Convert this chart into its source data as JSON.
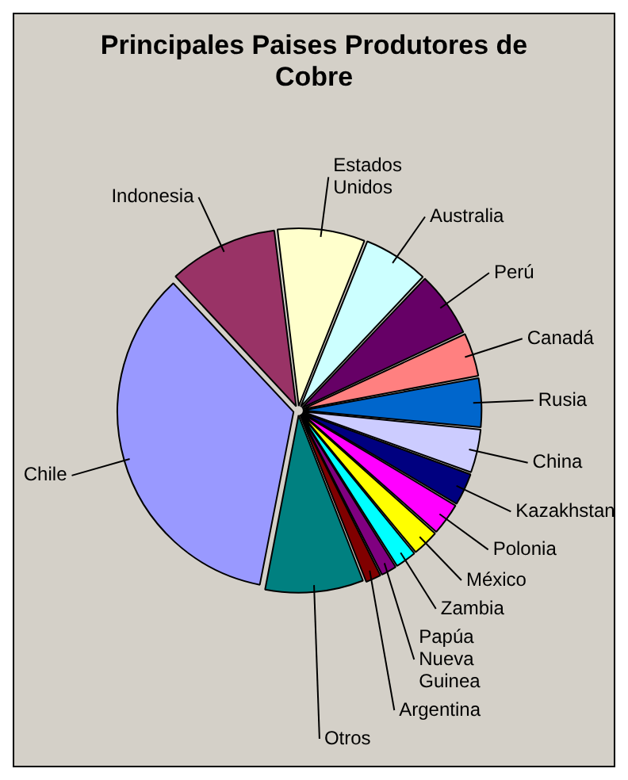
{
  "chart_data": {
    "type": "pie",
    "title": "Principales Paises Produtores de Cobre",
    "categories": [
      "Estados Unidos",
      "Australia",
      "Perú",
      "Canadá",
      "Rusia",
      "China",
      "Kazakhstan",
      "Polonia",
      "México",
      "Zambia",
      "Papúa Nueva Guinea",
      "Argentina",
      "Otros",
      "Chile",
      "Indonesia"
    ],
    "values": [
      8,
      6,
      6,
      4,
      4.5,
      4,
      3,
      3,
      2.5,
      2,
      1.5,
      1.5,
      9,
      35,
      10
    ],
    "colors": [
      "#ffffcc",
      "#ccffff",
      "#660066",
      "#ff8080",
      "#0066cc",
      "#ccccff",
      "#000080",
      "#ff00ff",
      "#ffff00",
      "#00ffff",
      "#800080",
      "#800000",
      "#008080",
      "#9999ff",
      "#993366"
    ],
    "legend": false
  }
}
